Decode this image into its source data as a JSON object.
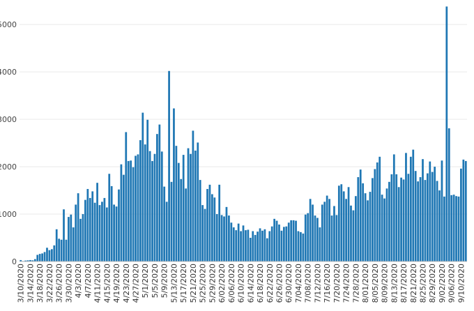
{
  "chart_data": {
    "type": "bar",
    "title": "",
    "xlabel": "",
    "ylabel": "",
    "color": "#1f77b4",
    "ylim": [
      0,
      5400
    ],
    "grid": true,
    "legend": "none",
    "y_ticks": [
      0,
      1000,
      2000,
      3000,
      4000,
      5000
    ],
    "x_tick_labels": [
      "3/10/2020",
      "3/14/2020",
      "3/18/2020",
      "3/22/2020",
      "3/26/2020",
      "3/30/2020",
      "4/3/2020",
      "4/7/2020",
      "4/11/2020",
      "4/15/2020",
      "4/19/2020",
      "4/23/2020",
      "4/27/2020",
      "5/1/2020",
      "5/5/2020",
      "5/9/2020",
      "5/13/2020",
      "5/17/2020",
      "5/21/2020",
      "5/25/2020",
      "5/29/2020",
      "6/02/2020",
      "6/06/2020",
      "6/10/2020",
      "6/14/2020",
      "6/18/2020",
      "6/22/2020",
      "6/26/2020",
      "6/30/2020",
      "7/04/2020",
      "7/08/2020",
      "7/12/2020",
      "7/16/2020",
      "7/20/2020",
      "7/24/2020",
      "7/28/2020",
      "8/01/2020",
      "8/05/2020",
      "8/09/2020",
      "8/13/2020",
      "8/17/2020",
      "8/21/2020",
      "8/25/2020",
      "8/29/2020",
      "9/02/2020",
      "9/06/2020",
      "9/10/2020"
    ],
    "values": [
      30,
      10,
      20,
      25,
      30,
      25,
      50,
      140,
      160,
      170,
      200,
      290,
      240,
      260,
      340,
      680,
      480,
      460,
      1100,
      460,
      940,
      990,
      720,
      1200,
      1440,
      900,
      1000,
      1300,
      1530,
      1340,
      1480,
      1240,
      1660,
      1190,
      1260,
      1340,
      1140,
      1850,
      1590,
      1200,
      1160,
      1520,
      2050,
      1830,
      2730,
      2120,
      2130,
      1990,
      2230,
      2260,
      2560,
      3140,
      2470,
      2990,
      2330,
      2120,
      2270,
      2690,
      2890,
      2320,
      1580,
      1260,
      4020,
      1680,
      3230,
      2440,
      2080,
      1740,
      2250,
      1540,
      2390,
      2270,
      2760,
      2340,
      2510,
      1720,
      1190,
      1110,
      1530,
      1620,
      1420,
      1350,
      1000,
      1620,
      980,
      950,
      1150,
      970,
      820,
      720,
      660,
      800,
      640,
      760,
      660,
      670,
      500,
      640,
      560,
      630,
      700,
      650,
      680,
      490,
      640,
      740,
      900,
      860,
      780,
      650,
      730,
      740,
      820,
      870,
      870,
      860,
      640,
      620,
      590,
      990,
      1020,
      1320,
      1200,
      970,
      920,
      720,
      1200,
      1260,
      1390,
      1320,
      970,
      1170,
      980,
      1600,
      1630,
      1480,
      1320,
      1570,
      1180,
      1080,
      1380,
      1780,
      1940,
      1650,
      1440,
      1290,
      1470,
      1760,
      1950,
      2090,
      2210,
      1410,
      1330,
      1540,
      1680,
      1840,
      2260,
      1840,
      1570,
      1770,
      1730,
      2290,
      1850,
      2210,
      2360,
      1910,
      1690,
      1780,
      2160,
      1720,
      1860,
      2110,
      1890,
      2000,
      1700,
      1500,
      2130,
      1370,
      5380,
      2810,
      1400,
      1410,
      1380,
      1370,
      1960,
      2150,
      2120
    ]
  }
}
